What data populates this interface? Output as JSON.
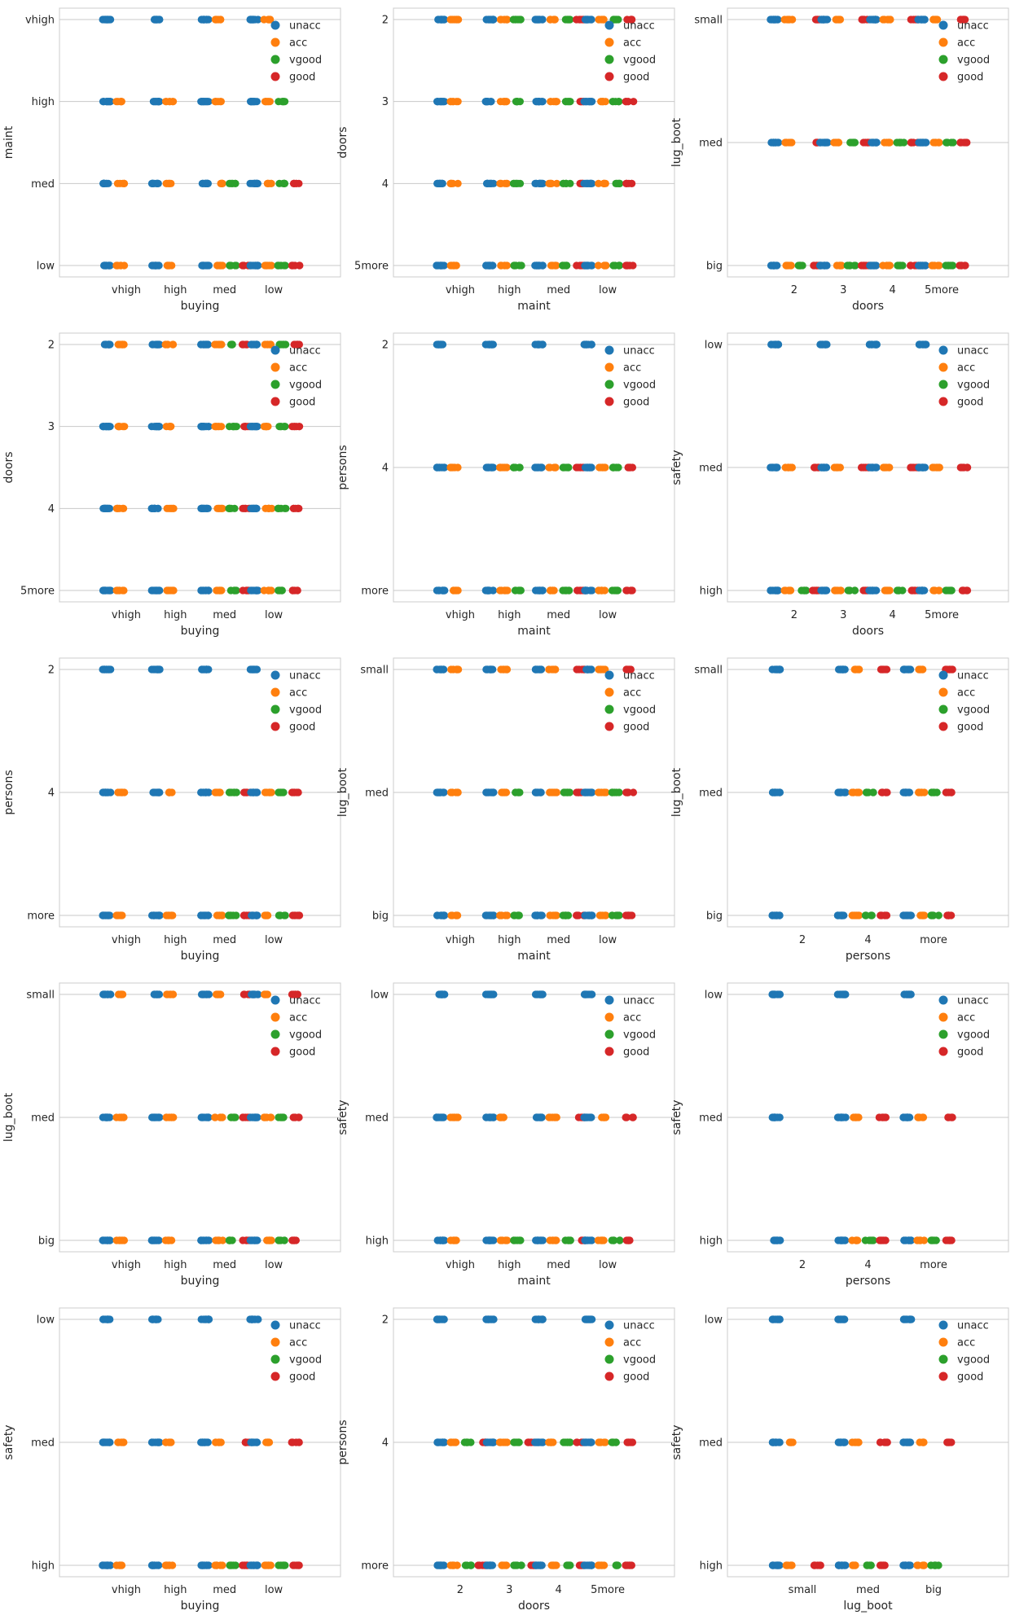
{
  "colors": {
    "unacc": "#1f77b4",
    "acc": "#ff7f0e",
    "vgood": "#2ca02c",
    "good": "#d62728"
  },
  "legend": [
    "unacc",
    "acc",
    "vgood",
    "good"
  ],
  "chart_data": [
    {
      "type": "scatter",
      "xlabel": "buying",
      "ylabel": "maint",
      "xcats": [
        "vhigh",
        "high",
        "med",
        "low"
      ],
      "ycats": [
        "vhigh",
        "high",
        "med",
        "low"
      ],
      "present": [
        [
          [
            "unacc"
          ],
          [
            "unacc"
          ],
          [
            "unacc",
            "acc"
          ],
          [
            "unacc",
            "acc"
          ]
        ],
        [
          [
            "unacc",
            "acc"
          ],
          [
            "unacc",
            "acc"
          ],
          [
            "unacc",
            "acc"
          ],
          [
            "unacc",
            "acc",
            "vgood"
          ]
        ],
        [
          [
            "unacc",
            "acc"
          ],
          [
            "unacc",
            "acc"
          ],
          [
            "unacc",
            "acc",
            "vgood"
          ],
          [
            "unacc",
            "acc",
            "vgood",
            "good"
          ]
        ],
        [
          [
            "unacc",
            "acc"
          ],
          [
            "unacc",
            "acc"
          ],
          [
            "unacc",
            "acc",
            "vgood",
            "good"
          ],
          [
            "unacc",
            "acc",
            "vgood",
            "good"
          ]
        ]
      ]
    },
    {
      "type": "scatter",
      "xlabel": "maint",
      "ylabel": "doors",
      "xcats": [
        "vhigh",
        "high",
        "med",
        "low"
      ],
      "ycats": [
        "2",
        "3",
        "4",
        "5more"
      ],
      "present": [
        [
          [
            "unacc",
            "acc"
          ],
          [
            "unacc",
            "acc",
            "vgood"
          ],
          [
            "unacc",
            "acc",
            "vgood",
            "good"
          ],
          [
            "unacc",
            "acc",
            "vgood",
            "good"
          ]
        ],
        [
          [
            "unacc",
            "acc"
          ],
          [
            "unacc",
            "acc",
            "vgood"
          ],
          [
            "unacc",
            "acc",
            "vgood",
            "good"
          ],
          [
            "unacc",
            "acc",
            "vgood",
            "good"
          ]
        ],
        [
          [
            "unacc",
            "acc"
          ],
          [
            "unacc",
            "acc",
            "vgood"
          ],
          [
            "unacc",
            "acc",
            "vgood",
            "good"
          ],
          [
            "unacc",
            "acc",
            "vgood",
            "good"
          ]
        ],
        [
          [
            "unacc",
            "acc"
          ],
          [
            "unacc",
            "acc",
            "vgood"
          ],
          [
            "unacc",
            "acc",
            "vgood",
            "good"
          ],
          [
            "unacc",
            "acc",
            "vgood",
            "good"
          ]
        ]
      ]
    },
    {
      "type": "scatter",
      "xlabel": "doors",
      "ylabel": "lug_boot",
      "xcats": [
        "2",
        "3",
        "4",
        "5more"
      ],
      "ycats": [
        "small",
        "med",
        "big"
      ],
      "present": [
        [
          [
            "unacc",
            "acc",
            "good"
          ],
          [
            "unacc",
            "acc",
            "good"
          ],
          [
            "unacc",
            "acc",
            "good"
          ],
          [
            "unacc",
            "acc",
            "good"
          ]
        ],
        [
          [
            "unacc",
            "acc",
            "good"
          ],
          [
            "unacc",
            "acc",
            "vgood",
            "good"
          ],
          [
            "unacc",
            "acc",
            "vgood",
            "good"
          ],
          [
            "unacc",
            "acc",
            "vgood",
            "good"
          ]
        ],
        [
          [
            "unacc",
            "acc",
            "vgood",
            "good"
          ],
          [
            "unacc",
            "acc",
            "vgood",
            "good"
          ],
          [
            "unacc",
            "acc",
            "vgood",
            "good"
          ],
          [
            "unacc",
            "acc",
            "vgood",
            "good"
          ]
        ]
      ]
    },
    {
      "type": "scatter",
      "xlabel": "buying",
      "ylabel": "doors",
      "xcats": [
        "vhigh",
        "high",
        "med",
        "low"
      ],
      "ycats": [
        "2",
        "3",
        "4",
        "5more"
      ],
      "present": [
        [
          [
            "unacc",
            "acc"
          ],
          [
            "unacc",
            "acc"
          ],
          [
            "unacc",
            "acc",
            "vgood",
            "good"
          ],
          [
            "unacc",
            "acc",
            "vgood",
            "good"
          ]
        ],
        [
          [
            "unacc",
            "acc"
          ],
          [
            "unacc",
            "acc"
          ],
          [
            "unacc",
            "acc",
            "vgood",
            "good"
          ],
          [
            "unacc",
            "acc",
            "vgood",
            "good"
          ]
        ],
        [
          [
            "unacc",
            "acc"
          ],
          [
            "unacc",
            "acc"
          ],
          [
            "unacc",
            "acc",
            "vgood",
            "good"
          ],
          [
            "unacc",
            "acc",
            "vgood",
            "good"
          ]
        ],
        [
          [
            "unacc",
            "acc"
          ],
          [
            "unacc",
            "acc"
          ],
          [
            "unacc",
            "acc",
            "vgood",
            "good"
          ],
          [
            "unacc",
            "acc",
            "vgood",
            "good"
          ]
        ]
      ]
    },
    {
      "type": "scatter",
      "xlabel": "maint",
      "ylabel": "persons",
      "xcats": [
        "vhigh",
        "high",
        "med",
        "low"
      ],
      "ycats": [
        "2",
        "4",
        "more"
      ],
      "present": [
        [
          [
            "unacc"
          ],
          [
            "unacc"
          ],
          [
            "unacc"
          ],
          [
            "unacc"
          ]
        ],
        [
          [
            "unacc",
            "acc"
          ],
          [
            "unacc",
            "acc",
            "vgood"
          ],
          [
            "unacc",
            "acc",
            "vgood",
            "good"
          ],
          [
            "unacc",
            "acc",
            "vgood",
            "good"
          ]
        ],
        [
          [
            "unacc",
            "acc"
          ],
          [
            "unacc",
            "acc",
            "vgood"
          ],
          [
            "unacc",
            "acc",
            "vgood",
            "good"
          ],
          [
            "unacc",
            "acc",
            "vgood",
            "good"
          ]
        ]
      ]
    },
    {
      "type": "scatter",
      "xlabel": "doors",
      "ylabel": "safety",
      "xcats": [
        "2",
        "3",
        "4",
        "5more"
      ],
      "ycats": [
        "low",
        "med",
        "high"
      ],
      "present": [
        [
          [
            "unacc"
          ],
          [
            "unacc"
          ],
          [
            "unacc"
          ],
          [
            "unacc"
          ]
        ],
        [
          [
            "unacc",
            "acc",
            "good"
          ],
          [
            "unacc",
            "acc",
            "good"
          ],
          [
            "unacc",
            "acc",
            "good"
          ],
          [
            "unacc",
            "acc",
            "good"
          ]
        ],
        [
          [
            "unacc",
            "acc",
            "vgood",
            "good"
          ],
          [
            "unacc",
            "acc",
            "vgood",
            "good"
          ],
          [
            "unacc",
            "acc",
            "vgood",
            "good"
          ],
          [
            "unacc",
            "acc",
            "vgood",
            "good"
          ]
        ]
      ]
    },
    {
      "type": "scatter",
      "xlabel": "buying",
      "ylabel": "persons",
      "xcats": [
        "vhigh",
        "high",
        "med",
        "low"
      ],
      "ycats": [
        "2",
        "4",
        "more"
      ],
      "present": [
        [
          [
            "unacc"
          ],
          [
            "unacc"
          ],
          [
            "unacc"
          ],
          [
            "unacc"
          ]
        ],
        [
          [
            "unacc",
            "acc"
          ],
          [
            "unacc",
            "acc"
          ],
          [
            "unacc",
            "acc",
            "vgood",
            "good"
          ],
          [
            "unacc",
            "acc",
            "vgood",
            "good"
          ]
        ],
        [
          [
            "unacc",
            "acc"
          ],
          [
            "unacc",
            "acc"
          ],
          [
            "unacc",
            "acc",
            "vgood",
            "good"
          ],
          [
            "unacc",
            "acc",
            "vgood",
            "good"
          ]
        ]
      ]
    },
    {
      "type": "scatter",
      "xlabel": "maint",
      "ylabel": "lug_boot",
      "xcats": [
        "vhigh",
        "high",
        "med",
        "low"
      ],
      "ycats": [
        "small",
        "med",
        "big"
      ],
      "present": [
        [
          [
            "unacc",
            "acc"
          ],
          [
            "unacc",
            "acc"
          ],
          [
            "unacc",
            "acc",
            "good"
          ],
          [
            "unacc",
            "acc",
            "good"
          ]
        ],
        [
          [
            "unacc",
            "acc"
          ],
          [
            "unacc",
            "acc",
            "vgood"
          ],
          [
            "unacc",
            "acc",
            "vgood",
            "good"
          ],
          [
            "unacc",
            "acc",
            "vgood",
            "good"
          ]
        ],
        [
          [
            "unacc",
            "acc"
          ],
          [
            "unacc",
            "acc",
            "vgood"
          ],
          [
            "unacc",
            "acc",
            "vgood",
            "good"
          ],
          [
            "unacc",
            "acc",
            "vgood",
            "good"
          ]
        ]
      ]
    },
    {
      "type": "scatter",
      "xlabel": "persons",
      "ylabel": "lug_boot",
      "xcats": [
        "2",
        "4",
        "more"
      ],
      "ycats": [
        "small",
        "med",
        "big"
      ],
      "present": [
        [
          [
            "unacc"
          ],
          [
            "unacc",
            "acc",
            "good"
          ],
          [
            "unacc",
            "acc",
            "good"
          ]
        ],
        [
          [
            "unacc"
          ],
          [
            "unacc",
            "acc",
            "vgood",
            "good"
          ],
          [
            "unacc",
            "acc",
            "vgood",
            "good"
          ]
        ],
        [
          [
            "unacc"
          ],
          [
            "unacc",
            "acc",
            "vgood",
            "good"
          ],
          [
            "unacc",
            "acc",
            "vgood",
            "good"
          ]
        ]
      ]
    },
    {
      "type": "scatter",
      "xlabel": "buying",
      "ylabel": "lug_boot",
      "xcats": [
        "vhigh",
        "high",
        "med",
        "low"
      ],
      "ycats": [
        "small",
        "med",
        "big"
      ],
      "present": [
        [
          [
            "unacc",
            "acc"
          ],
          [
            "unacc",
            "acc"
          ],
          [
            "unacc",
            "acc",
            "good"
          ],
          [
            "unacc",
            "acc",
            "good"
          ]
        ],
        [
          [
            "unacc",
            "acc"
          ],
          [
            "unacc",
            "acc"
          ],
          [
            "unacc",
            "acc",
            "vgood",
            "good"
          ],
          [
            "unacc",
            "acc",
            "vgood",
            "good"
          ]
        ],
        [
          [
            "unacc",
            "acc"
          ],
          [
            "unacc",
            "acc"
          ],
          [
            "unacc",
            "acc",
            "vgood",
            "good"
          ],
          [
            "unacc",
            "acc",
            "vgood",
            "good"
          ]
        ]
      ]
    },
    {
      "type": "scatter",
      "xlabel": "maint",
      "ylabel": "safety",
      "xcats": [
        "vhigh",
        "high",
        "med",
        "low"
      ],
      "ycats": [
        "low",
        "med",
        "high"
      ],
      "present": [
        [
          [
            "unacc"
          ],
          [
            "unacc"
          ],
          [
            "unacc"
          ],
          [
            "unacc"
          ]
        ],
        [
          [
            "unacc",
            "acc"
          ],
          [
            "unacc",
            "acc"
          ],
          [
            "unacc",
            "acc",
            "good"
          ],
          [
            "unacc",
            "acc",
            "good"
          ]
        ],
        [
          [
            "unacc",
            "acc"
          ],
          [
            "unacc",
            "acc",
            "vgood"
          ],
          [
            "unacc",
            "acc",
            "vgood",
            "good"
          ],
          [
            "unacc",
            "acc",
            "vgood",
            "good"
          ]
        ]
      ]
    },
    {
      "type": "scatter",
      "xlabel": "persons",
      "ylabel": "safety",
      "xcats": [
        "2",
        "4",
        "more"
      ],
      "ycats": [
        "low",
        "med",
        "high"
      ],
      "present": [
        [
          [
            "unacc"
          ],
          [
            "unacc"
          ],
          [
            "unacc"
          ]
        ],
        [
          [
            "unacc"
          ],
          [
            "unacc",
            "acc",
            "good"
          ],
          [
            "unacc",
            "acc",
            "good"
          ]
        ],
        [
          [
            "unacc"
          ],
          [
            "unacc",
            "acc",
            "vgood",
            "good"
          ],
          [
            "unacc",
            "acc",
            "vgood",
            "good"
          ]
        ]
      ]
    },
    {
      "type": "scatter",
      "xlabel": "buying",
      "ylabel": "safety",
      "xcats": [
        "vhigh",
        "high",
        "med",
        "low"
      ],
      "ycats": [
        "low",
        "med",
        "high"
      ],
      "present": [
        [
          [
            "unacc"
          ],
          [
            "unacc"
          ],
          [
            "unacc"
          ],
          [
            "unacc"
          ]
        ],
        [
          [
            "unacc",
            "acc"
          ],
          [
            "unacc",
            "acc"
          ],
          [
            "unacc",
            "acc",
            "good"
          ],
          [
            "unacc",
            "acc",
            "good"
          ]
        ],
        [
          [
            "unacc",
            "acc"
          ],
          [
            "unacc",
            "acc"
          ],
          [
            "unacc",
            "acc",
            "vgood",
            "good"
          ],
          [
            "unacc",
            "acc",
            "vgood",
            "good"
          ]
        ]
      ]
    },
    {
      "type": "scatter",
      "xlabel": "doors",
      "ylabel": "persons",
      "xcats": [
        "2",
        "3",
        "4",
        "5more"
      ],
      "ycats": [
        "2",
        "4",
        "more"
      ],
      "present": [
        [
          [
            "unacc"
          ],
          [
            "unacc"
          ],
          [
            "unacc"
          ],
          [
            "unacc"
          ]
        ],
        [
          [
            "unacc",
            "acc",
            "vgood",
            "good"
          ],
          [
            "unacc",
            "acc",
            "vgood",
            "good"
          ],
          [
            "unacc",
            "acc",
            "vgood",
            "good"
          ],
          [
            "unacc",
            "acc",
            "vgood",
            "good"
          ]
        ],
        [
          [
            "unacc",
            "acc",
            "vgood",
            "good"
          ],
          [
            "unacc",
            "acc",
            "vgood",
            "good"
          ],
          [
            "unacc",
            "acc",
            "vgood",
            "good"
          ],
          [
            "unacc",
            "acc",
            "vgood",
            "good"
          ]
        ]
      ]
    },
    {
      "type": "scatter",
      "xlabel": "lug_boot",
      "ylabel": "safety",
      "xcats": [
        "small",
        "med",
        "big"
      ],
      "ycats": [
        "low",
        "med",
        "high"
      ],
      "present": [
        [
          [
            "unacc"
          ],
          [
            "unacc"
          ],
          [
            "unacc"
          ]
        ],
        [
          [
            "unacc",
            "acc"
          ],
          [
            "unacc",
            "acc",
            "good"
          ],
          [
            "unacc",
            "acc",
            "good"
          ]
        ],
        [
          [
            "unacc",
            "acc",
            "good"
          ],
          [
            "unacc",
            "acc",
            "vgood",
            "good"
          ],
          [
            "unacc",
            "acc",
            "vgood"
          ]
        ]
      ]
    }
  ]
}
